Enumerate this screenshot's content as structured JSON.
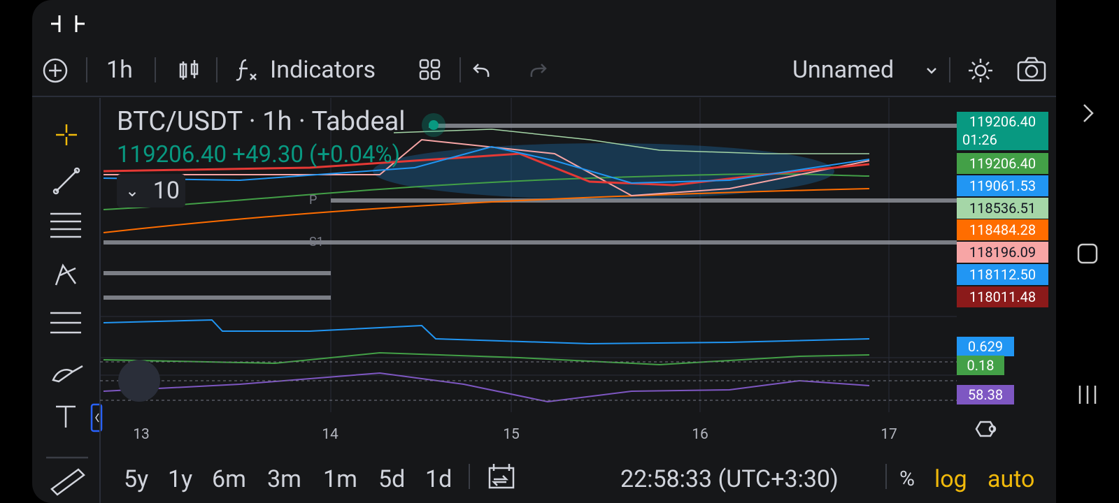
{
  "toolbar": {
    "interval": "1h",
    "indicators": "Indicators",
    "layout_name": "Unnamed"
  },
  "legend": {
    "symbol": "BTC/USDT",
    "interval": "1h",
    "exchange": "Tabdeal",
    "quote": "119206.40 +49.30 (+0.04%)",
    "hidden_count": "10"
  },
  "pivots": {
    "p": "P",
    "s1": "S1"
  },
  "price_scale": [
    {
      "text": "119206.40",
      "sub": "01:26",
      "bg": "#089981",
      "fg": "#ffffff"
    },
    {
      "text": "119206.40",
      "bg": "#43a047",
      "fg": "#ffffff"
    },
    {
      "text": "119061.53",
      "bg": "#2196f3",
      "fg": "#ffffff"
    },
    {
      "text": "118536.51",
      "bg": "#a5d6a7",
      "fg": "#131722"
    },
    {
      "text": "118484.28",
      "bg": "#ff6d00",
      "fg": "#ffffff"
    },
    {
      "text": "118196.09",
      "bg": "#f7a5a5",
      "fg": "#131722"
    },
    {
      "text": "118112.50",
      "bg": "#2196f3",
      "fg": "#ffffff"
    },
    {
      "text": "118011.48",
      "bg": "#8b1a1a",
      "fg": "#ffffff"
    }
  ],
  "indicator_labels": [
    {
      "text": "0.629",
      "bg": "#2196f3"
    },
    {
      "text": "0.18",
      "bg": "#43a047"
    },
    {
      "text": "58.38",
      "bg": "#7e57c2"
    }
  ],
  "time_axis": [
    "13",
    "14",
    "15",
    "16",
    "17"
  ],
  "ranges": [
    "5y",
    "1y",
    "6m",
    "3m",
    "1m",
    "5d",
    "1d"
  ],
  "clock": "22:58:33 (UTC+3:30)",
  "scale_options": {
    "percent": "%",
    "log": "log",
    "auto": "auto"
  }
}
